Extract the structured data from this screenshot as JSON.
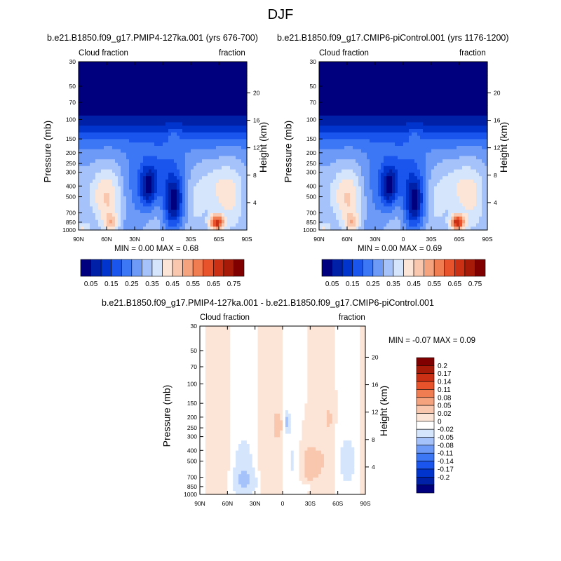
{
  "page": {
    "title": "DJF",
    "diff_title": "b.e21.B1850.f09_g17.PMIP4-127ka.001 - b.e21.B1850.f09_g17.CMIP6-piControl.001"
  },
  "panels": [
    {
      "title": "b.e21.B1850.f09_g17.PMIP4-127ka.001 (yrs 676-700)",
      "left_label": "Cloud fraction",
      "right_label": "fraction",
      "stats": "MIN =   0.00  MAX =   0.68"
    },
    {
      "title": "b.e21.B1850.f09_g17.CMIP6-piControl.001 (yrs 1176-1200)",
      "left_label": "Cloud fraction",
      "right_label": "fraction",
      "stats": "MIN =   0.00  MAX =   0.69"
    },
    {
      "title": "",
      "left_label": "Cloud fraction",
      "right_label": "fraction",
      "stats": "MIN =  -0.07  MAX =   0.09"
    }
  ],
  "axes": {
    "ylabel": "Pressure (mb)",
    "y2label": "Height (km)"
  },
  "colors": {
    "abs_levels": [
      "#00007f",
      "#0020a8",
      "#0034cc",
      "#1a55ee",
      "#3c78f5",
      "#6e9af7",
      "#a6c2fa",
      "#d4e5fc",
      "#fce4d6",
      "#f9c7ad",
      "#f5a27f",
      "#f07c52",
      "#e8532b",
      "#cc3014",
      "#a81a08",
      "#800000"
    ],
    "diff_levels": [
      "#00007f",
      "#0020a8",
      "#0034cc",
      "#1a55ee",
      "#3c78f5",
      "#6e9af7",
      "#a6c2fa",
      "#d4e5fc",
      "#ffffff",
      "#fce4d6",
      "#f9c7ad",
      "#f5a27f",
      "#f07c52",
      "#e8532b",
      "#cc3014",
      "#a81a08",
      "#800000"
    ]
  },
  "chart_data": [
    {
      "type": "heatmap",
      "title": "b.e21.B1850.f09_g17.PMIP4-127ka.001 (yrs 676-700)",
      "xlabel": "",
      "ylabel": "Pressure (mb)",
      "y2label": "Height (km)",
      "x_ticks": [
        "90N",
        "60N",
        "30N",
        "0",
        "30S",
        "60S",
        "90S"
      ],
      "y_ticks": [
        "30",
        "50",
        "70",
        "100",
        "150",
        "200",
        "250",
        "300",
        "400",
        "500",
        "700",
        "850",
        "1000"
      ],
      "y2_ticks": [
        "20",
        "16",
        "12",
        "8",
        "4"
      ],
      "xlim": [
        90,
        -90
      ],
      "ylim": [
        1000,
        30
      ],
      "y_scale": "log",
      "min": 0.0,
      "max": 0.68,
      "colorbar_labels": [
        "0.05",
        "0.15",
        "0.25",
        "0.35",
        "0.45",
        "0.55",
        "0.65",
        "0.75"
      ],
      "approx_field_values": [
        {
          "lat": 15,
          "p": 450,
          "value": 0.02
        },
        {
          "lat": -12,
          "p": 600,
          "value": 0.04
        },
        {
          "lat": -58,
          "p": 860,
          "value": 0.68
        },
        {
          "lat": -10,
          "p": 130,
          "value": 0.3
        },
        {
          "lat": 90,
          "p": 30,
          "value": 0.0
        }
      ]
    },
    {
      "type": "heatmap",
      "title": "b.e21.B1850.f09_g17.CMIP6-piControl.001 (yrs 1176-1200)",
      "xlabel": "",
      "ylabel": "Pressure (mb)",
      "y2label": "Height (km)",
      "x_ticks": [
        "90N",
        "60N",
        "30N",
        "0",
        "30S",
        "60S",
        "90S"
      ],
      "y_ticks": [
        "30",
        "50",
        "70",
        "100",
        "150",
        "200",
        "250",
        "300",
        "400",
        "500",
        "700",
        "850",
        "1000"
      ],
      "y2_ticks": [
        "20",
        "16",
        "12",
        "8",
        "4"
      ],
      "xlim": [
        90,
        -90
      ],
      "ylim": [
        1000,
        30
      ],
      "y_scale": "log",
      "min": 0.0,
      "max": 0.69,
      "colorbar_labels": [
        "0.05",
        "0.15",
        "0.25",
        "0.35",
        "0.45",
        "0.55",
        "0.65",
        "0.75"
      ],
      "approx_field_values": [
        {
          "lat": 15,
          "p": 450,
          "value": 0.02
        },
        {
          "lat": -12,
          "p": 600,
          "value": 0.04
        },
        {
          "lat": -58,
          "p": 860,
          "value": 0.69
        },
        {
          "lat": -10,
          "p": 130,
          "value": 0.3
        },
        {
          "lat": 90,
          "p": 30,
          "value": 0.0
        }
      ]
    },
    {
      "type": "heatmap",
      "title": "b.e21.B1850.f09_g17.PMIP4-127ka.001 - b.e21.B1850.f09_g17.CMIP6-piControl.001",
      "xlabel": "",
      "ylabel": "Pressure (mb)",
      "y2label": "Height (km)",
      "x_ticks": [
        "90N",
        "60N",
        "30N",
        "0",
        "30S",
        "60S",
        "90S"
      ],
      "y_ticks": [
        "30",
        "50",
        "70",
        "100",
        "150",
        "200",
        "250",
        "300",
        "400",
        "500",
        "700",
        "850",
        "1000"
      ],
      "y2_ticks": [
        "20",
        "16",
        "12",
        "8",
        "4"
      ],
      "xlim": [
        90,
        -90
      ],
      "ylim": [
        1000,
        30
      ],
      "y_scale": "log",
      "min": -0.07,
      "max": 0.09,
      "colorbar_labels": [
        "0.2",
        "0.17",
        "0.14",
        "0.11",
        "0.08",
        "0.05",
        "0.02",
        "0",
        "-0.02",
        "-0.05",
        "-0.08",
        "-0.11",
        "-0.14",
        "-0.17",
        "-0.2"
      ]
    }
  ]
}
